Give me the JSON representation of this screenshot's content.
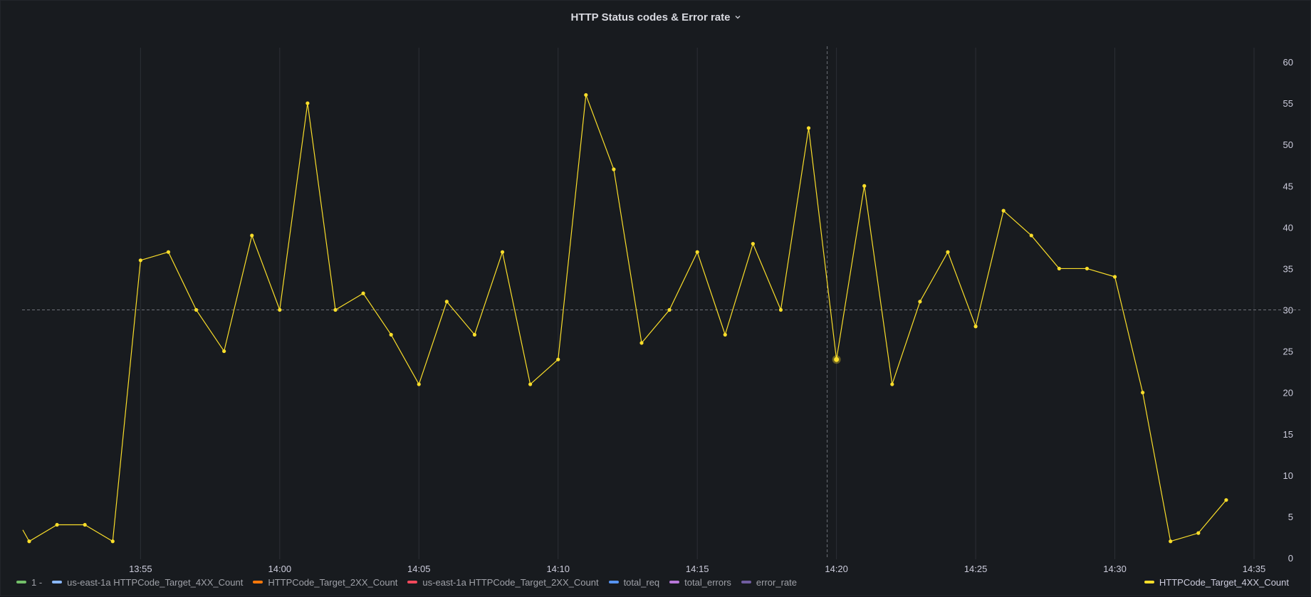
{
  "panel": {
    "title": "HTTP Status codes & Error rate",
    "menu_icon": "chevron-down-icon"
  },
  "colors": {
    "background": "#181b1f",
    "grid": "#2c2f35",
    "series_line": "#fade2a",
    "threshold": "#6e7179"
  },
  "chart_data": {
    "type": "line",
    "x_unit": "time (HH:MM)",
    "xlim": [
      "13:51",
      "14:35"
    ],
    "ylim": [
      0,
      60
    ],
    "y_ticks": [
      0,
      5,
      10,
      15,
      20,
      25,
      30,
      35,
      40,
      45,
      50,
      55,
      60
    ],
    "x_ticks": [
      "13:55",
      "14:00",
      "14:05",
      "14:10",
      "14:15",
      "14:20",
      "14:25",
      "14:30",
      "14:35"
    ],
    "grid": true,
    "threshold_line": 30,
    "hover_time": "14:19:40",
    "y_axis_side": "right",
    "legend_placement": "bottom",
    "series": [
      {
        "name": "HTTPCode_Target_4XX_Count",
        "color": "#fade2a",
        "x": [
          "13:51",
          "13:52",
          "13:53",
          "13:54",
          "13:55",
          "13:56",
          "13:57",
          "13:58",
          "13:59",
          "14:00",
          "14:01",
          "14:02",
          "14:03",
          "14:04",
          "14:05",
          "14:06",
          "14:07",
          "14:08",
          "14:09",
          "14:10",
          "14:11",
          "14:12",
          "14:13",
          "14:14",
          "14:15",
          "14:16",
          "14:17",
          "14:18",
          "14:19",
          "14:20",
          "14:21",
          "14:22",
          "14:23",
          "14:24",
          "14:25",
          "14:26",
          "14:27",
          "14:28",
          "14:29",
          "14:30",
          "14:31",
          "14:32",
          "14:33",
          "14:34"
        ],
        "values": [
          2,
          4,
          4,
          2,
          36,
          37,
          30,
          25,
          39,
          30,
          55,
          30,
          32,
          27,
          21,
          31,
          27,
          37,
          21,
          24,
          56,
          47,
          26,
          30,
          37,
          27,
          38,
          30,
          52,
          24,
          45,
          21,
          31,
          37,
          28,
          42,
          39,
          35,
          35,
          34,
          20,
          2,
          3,
          7
        ],
        "highlighted_point": {
          "x": "14:20",
          "y": 24
        }
      }
    ]
  },
  "legend": {
    "left": [
      {
        "label": "1 -",
        "color": "#73bf69"
      },
      {
        "label": "us-east-1a HTTPCode_Target_4XX_Count",
        "color": "#8ab8ff"
      },
      {
        "label": "HTTPCode_Target_2XX_Count",
        "color": "#ff780a"
      },
      {
        "label": "us-east-1a HTTPCode_Target_2XX_Count",
        "color": "#f2495c"
      },
      {
        "label": "total_req",
        "color": "#5794f2"
      },
      {
        "label": "total_errors",
        "color": "#b877d9"
      },
      {
        "label": "error_rate",
        "color": "#705da0"
      }
    ],
    "right": [
      {
        "label": "HTTPCode_Target_4XX_Count",
        "color": "#fade2a"
      }
    ]
  }
}
